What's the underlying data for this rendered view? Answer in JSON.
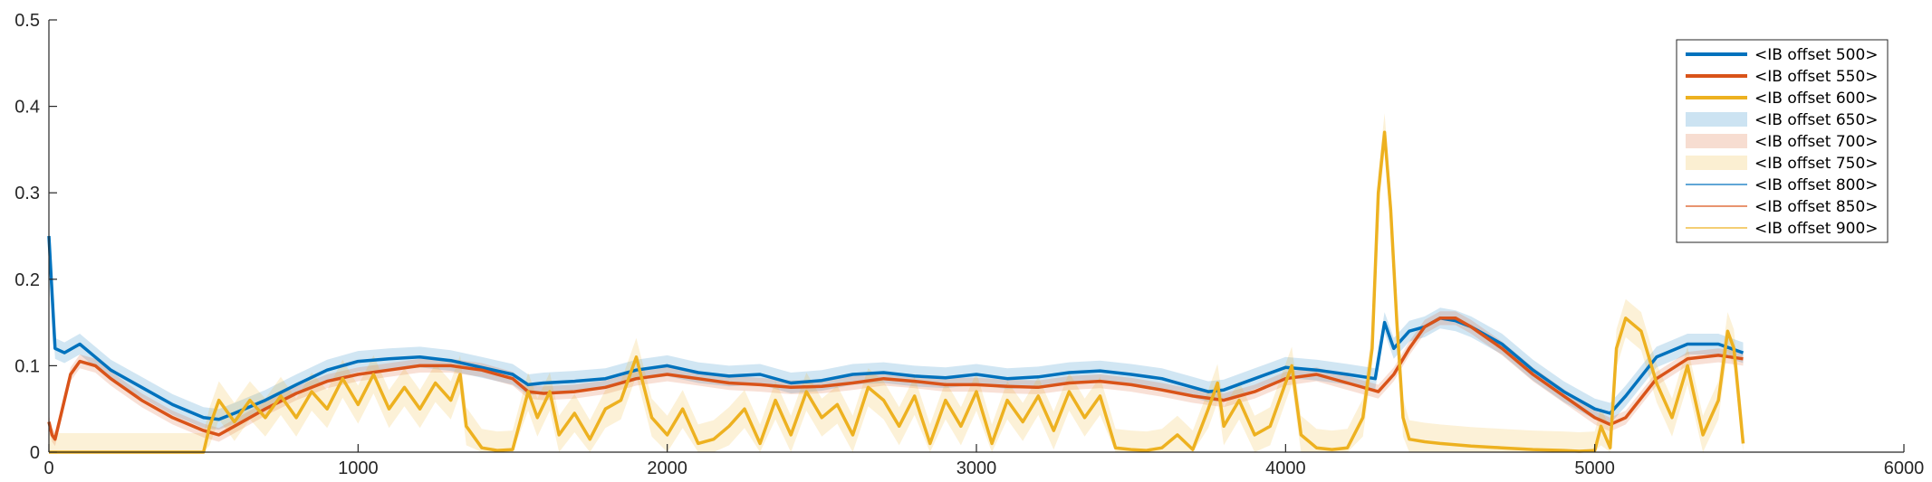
{
  "chart_data": {
    "type": "line",
    "title": "",
    "xlabel": "",
    "ylabel": "",
    "xlim": [
      0,
      6000
    ],
    "ylim": [
      0,
      0.5
    ],
    "xticks": [
      0,
      1000,
      2000,
      3000,
      4000,
      5000,
      6000
    ],
    "yticks": [
      0,
      0.1,
      0.2,
      0.3,
      0.4,
      0.5
    ],
    "xtick_labels": [
      "0",
      "1000",
      "2000",
      "3000",
      "4000",
      "5000",
      "6000"
    ],
    "ytick_labels": [
      "0",
      "0.1",
      "0.2",
      "0.3",
      "0.4",
      "0.5"
    ],
    "grid": false,
    "legend_position": "top-right",
    "colors": {
      "blue": "#0072BD",
      "orange": "#D95319",
      "yellow": "#EDB120"
    },
    "legend": [
      {
        "label": "<IB offset 500>",
        "kind": "line-thick",
        "color": "#0072BD"
      },
      {
        "label": "<IB offset 550>",
        "kind": "line-thick",
        "color": "#D95319"
      },
      {
        "label": "<IB offset 600>",
        "kind": "line-thick",
        "color": "#EDB120"
      },
      {
        "label": "<IB offset 650>",
        "kind": "band",
        "color": "#0072BD"
      },
      {
        "label": "<IB offset 700>",
        "kind": "band",
        "color": "#D95319"
      },
      {
        "label": "<IB offset 750>",
        "kind": "band",
        "color": "#EDB120"
      },
      {
        "label": "<IB offset 800>",
        "kind": "line-thin",
        "color": "#0072BD"
      },
      {
        "label": "<IB offset 850>",
        "kind": "line-thin",
        "color": "#D95319"
      },
      {
        "label": "<IB offset 900>",
        "kind": "line-thin",
        "color": "#EDB120"
      }
    ],
    "series": [
      {
        "color": "#0072BD",
        "band_halfwidth": 0.012,
        "x": [
          0,
          20,
          50,
          100,
          150,
          200,
          300,
          400,
          500,
          550,
          600,
          700,
          800,
          900,
          1000,
          1100,
          1200,
          1300,
          1400,
          1500,
          1550,
          1600,
          1700,
          1800,
          1900,
          2000,
          2100,
          2200,
          2300,
          2400,
          2500,
          2600,
          2700,
          2800,
          2900,
          3000,
          3100,
          3200,
          3300,
          3400,
          3500,
          3600,
          3700,
          3750,
          3800,
          3900,
          4000,
          4100,
          4200,
          4290,
          4320,
          4350,
          4400,
          4450,
          4500,
          4550,
          4600,
          4700,
          4800,
          4900,
          5000,
          5050,
          5100,
          5200,
          5300,
          5400,
          5480
        ],
        "y": [
          0.25,
          0.12,
          0.115,
          0.125,
          0.11,
          0.095,
          0.075,
          0.055,
          0.04,
          0.038,
          0.045,
          0.06,
          0.078,
          0.095,
          0.105,
          0.108,
          0.11,
          0.106,
          0.098,
          0.09,
          0.078,
          0.08,
          0.082,
          0.085,
          0.095,
          0.1,
          0.092,
          0.088,
          0.09,
          0.08,
          0.083,
          0.09,
          0.092,
          0.088,
          0.086,
          0.09,
          0.085,
          0.087,
          0.092,
          0.094,
          0.09,
          0.085,
          0.075,
          0.07,
          0.072,
          0.085,
          0.098,
          0.095,
          0.09,
          0.085,
          0.15,
          0.12,
          0.14,
          0.145,
          0.155,
          0.152,
          0.145,
          0.125,
          0.095,
          0.07,
          0.05,
          0.045,
          0.065,
          0.11,
          0.125,
          0.125,
          0.115
        ]
      },
      {
        "color": "#D95319",
        "band_halfwidth": 0.008,
        "x": [
          0,
          10,
          20,
          40,
          70,
          100,
          150,
          200,
          300,
          400,
          500,
          550,
          600,
          700,
          800,
          900,
          1000,
          1100,
          1200,
          1300,
          1400,
          1500,
          1550,
          1600,
          1700,
          1800,
          1900,
          2000,
          2100,
          2200,
          2300,
          2400,
          2500,
          2600,
          2700,
          2800,
          2900,
          3000,
          3100,
          3200,
          3300,
          3400,
          3500,
          3600,
          3700,
          3800,
          3900,
          4000,
          4100,
          4200,
          4300,
          4350,
          4400,
          4450,
          4500,
          4550,
          4600,
          4700,
          4800,
          4900,
          5000,
          5050,
          5100,
          5200,
          5300,
          5400,
          5480
        ],
        "y": [
          0.035,
          0.02,
          0.015,
          0.045,
          0.09,
          0.105,
          0.1,
          0.085,
          0.06,
          0.04,
          0.025,
          0.02,
          0.03,
          0.05,
          0.068,
          0.082,
          0.09,
          0.095,
          0.1,
          0.1,
          0.095,
          0.085,
          0.07,
          0.068,
          0.07,
          0.075,
          0.085,
          0.09,
          0.085,
          0.08,
          0.078,
          0.075,
          0.076,
          0.08,
          0.085,
          0.082,
          0.078,
          0.078,
          0.076,
          0.075,
          0.08,
          0.082,
          0.078,
          0.072,
          0.065,
          0.06,
          0.07,
          0.085,
          0.09,
          0.08,
          0.07,
          0.09,
          0.12,
          0.145,
          0.155,
          0.155,
          0.145,
          0.12,
          0.09,
          0.065,
          0.04,
          0.032,
          0.04,
          0.085,
          0.108,
          0.112,
          0.108
        ]
      },
      {
        "color": "#EDB120",
        "band_halfwidth": 0.022,
        "x": [
          0,
          500,
          520,
          550,
          600,
          650,
          700,
          750,
          800,
          850,
          900,
          950,
          1000,
          1050,
          1100,
          1150,
          1200,
          1250,
          1300,
          1330,
          1350,
          1400,
          1450,
          1500,
          1550,
          1580,
          1620,
          1650,
          1700,
          1750,
          1800,
          1850,
          1900,
          1950,
          2000,
          2050,
          2100,
          2150,
          2200,
          2250,
          2300,
          2350,
          2400,
          2450,
          2500,
          2550,
          2600,
          2650,
          2700,
          2750,
          2800,
          2850,
          2900,
          2950,
          3000,
          3050,
          3100,
          3150,
          3200,
          3250,
          3300,
          3350,
          3400,
          3450,
          3500,
          3550,
          3600,
          3650,
          3700,
          3750,
          3780,
          3800,
          3850,
          3900,
          3950,
          4000,
          4020,
          4050,
          4100,
          4150,
          4200,
          4250,
          4280,
          4300,
          4320,
          4340,
          4360,
          4380,
          4400,
          4450,
          4500,
          4600,
          4700,
          4800,
          4900,
          4950,
          5000,
          5020,
          5050,
          5070,
          5100,
          5150,
          5200,
          5250,
          5300,
          5350,
          5400,
          5430,
          5450,
          5480
        ],
        "y": [
          0,
          0,
          0.03,
          0.06,
          0.035,
          0.06,
          0.04,
          0.065,
          0.04,
          0.07,
          0.05,
          0.085,
          0.055,
          0.09,
          0.05,
          0.075,
          0.05,
          0.08,
          0.06,
          0.09,
          0.03,
          0.005,
          0.002,
          0.003,
          0.07,
          0.04,
          0.07,
          0.02,
          0.045,
          0.015,
          0.05,
          0.06,
          0.11,
          0.04,
          0.02,
          0.05,
          0.01,
          0.015,
          0.03,
          0.05,
          0.01,
          0.06,
          0.02,
          0.07,
          0.04,
          0.055,
          0.02,
          0.075,
          0.06,
          0.03,
          0.065,
          0.01,
          0.06,
          0.03,
          0.07,
          0.01,
          0.06,
          0.035,
          0.065,
          0.025,
          0.07,
          0.04,
          0.065,
          0.005,
          0.003,
          0.002,
          0.005,
          0.02,
          0.003,
          0.05,
          0.08,
          0.03,
          0.06,
          0.02,
          0.03,
          0.08,
          0.1,
          0.02,
          0.005,
          0.003,
          0.005,
          0.04,
          0.12,
          0.3,
          0.37,
          0.28,
          0.15,
          0.04,
          0.015,
          0.012,
          0.01,
          0.007,
          0.005,
          0.003,
          0.002,
          0.001,
          0.002,
          0.03,
          0.005,
          0.12,
          0.155,
          0.14,
          0.08,
          0.04,
          0.1,
          0.02,
          0.06,
          0.14,
          0.12,
          0.01
        ]
      }
    ]
  }
}
